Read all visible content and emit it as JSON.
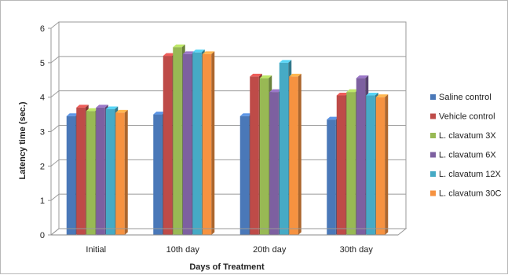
{
  "chart_data": {
    "type": "bar",
    "title": "",
    "xlabel": "Days of Treatment",
    "ylabel": "Latency time (sec.)",
    "ylim": [
      0,
      6
    ],
    "yticks": [
      "0",
      "1",
      "2",
      "3",
      "4",
      "5",
      "6"
    ],
    "grid": true,
    "legend_position": "right",
    "categories": [
      "Initial",
      "10th day",
      "20th day",
      "30th day"
    ],
    "series": [
      {
        "name": "Saline control",
        "color": "#4a78b8",
        "values": [
          3.45,
          3.5,
          3.45,
          3.35
        ]
      },
      {
        "name": "Vehicle control",
        "color": "#be4b48",
        "values": [
          3.7,
          5.2,
          4.6,
          4.05
        ]
      },
      {
        "name": "L. clavatum  3X",
        "color": "#98b954",
        "values": [
          3.6,
          5.45,
          4.55,
          4.15
        ]
      },
      {
        "name": "L. clavatum  6X",
        "color": "#7d60a0",
        "values": [
          3.7,
          5.25,
          4.15,
          4.55
        ]
      },
      {
        "name": "L. clavatum  12X",
        "color": "#46aac5",
        "values": [
          3.65,
          5.3,
          5.0,
          4.05
        ]
      },
      {
        "name": "L. clavatum  30C",
        "color": "#f69240",
        "values": [
          3.55,
          5.25,
          4.6,
          4.0
        ]
      }
    ]
  }
}
